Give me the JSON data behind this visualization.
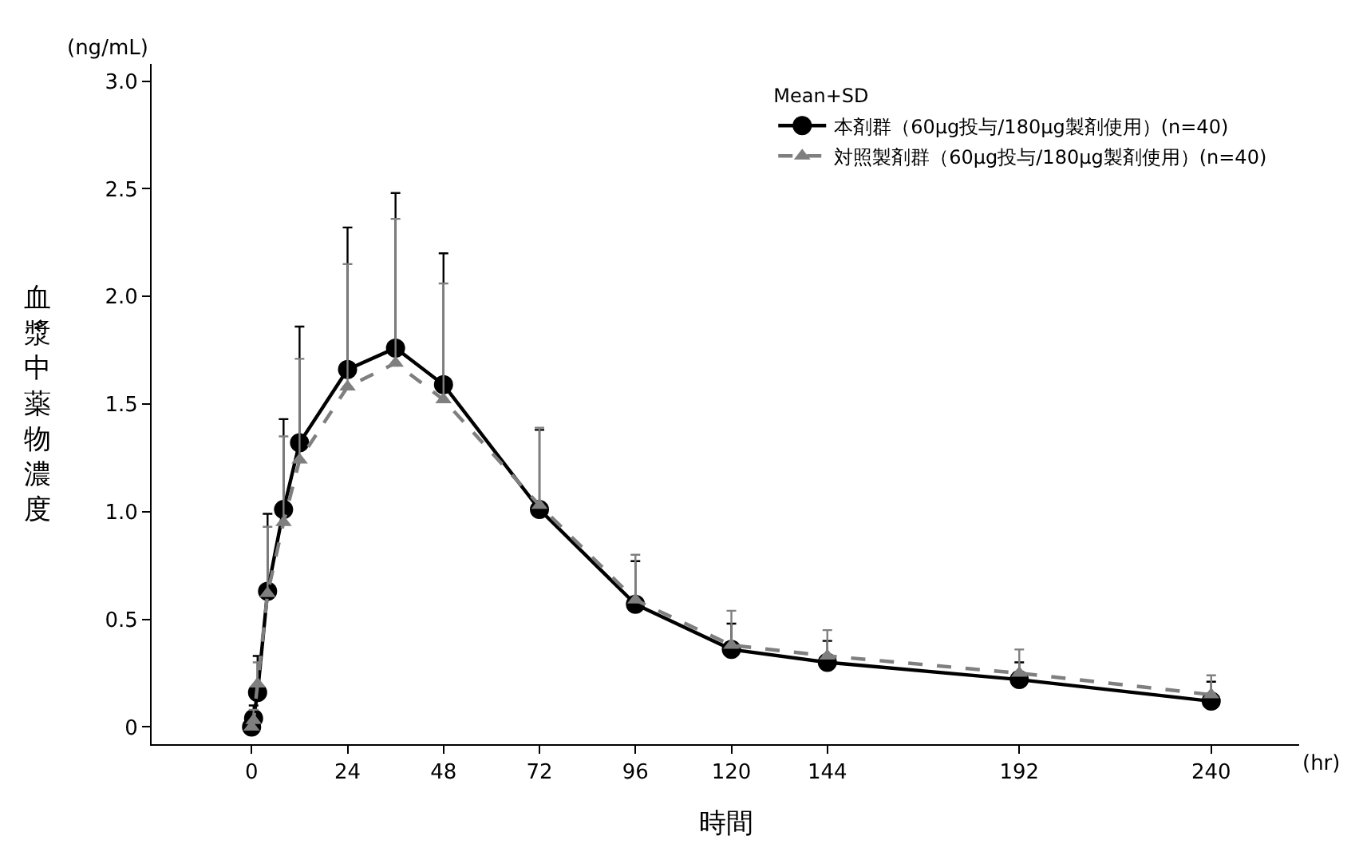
{
  "chart_data": {
    "type": "line",
    "xlabel": "時間",
    "ylabel": "血漿中薬物濃度",
    "legend_title": "Mean+SD",
    "annotations": [
      "(ng/mL)",
      "(hr)"
    ],
    "x": [
      0,
      0.5,
      1.5,
      4,
      8,
      12,
      24,
      36,
      48,
      72,
      96,
      120,
      144,
      192,
      240
    ],
    "series": [
      {
        "name": "本剤群（60µg投与/180µg製剤使用）(n=40)",
        "color": "#000000",
        "marker": "circle",
        "line_style": "solid",
        "values": [
          0,
          0.04,
          0.16,
          0.63,
          1.01,
          1.32,
          1.66,
          1.76,
          1.59,
          1.01,
          0.57,
          0.36,
          0.3,
          0.22,
          0.12
        ],
        "errors": [
          null,
          [
            0.04,
            0.1
          ],
          [
            0.16,
            0.33
          ],
          [
            0.63,
            0.99
          ],
          [
            1.01,
            1.43
          ],
          [
            1.32,
            1.86
          ],
          [
            1.66,
            2.32
          ],
          [
            1.76,
            2.48
          ],
          [
            1.59,
            2.2
          ],
          [
            1.01,
            1.38
          ],
          [
            0.57,
            0.77
          ],
          [
            0.36,
            0.48
          ],
          [
            0.3,
            0.4
          ],
          [
            0.22,
            0.3
          ],
          [
            0.12,
            0.21
          ]
        ]
      },
      {
        "name": "対照製剤群（60µg投与/180µg製剤使用）(n=40)",
        "color": "#7f7f7f",
        "marker": "triangle",
        "line_style": "dashed",
        "values": [
          0,
          0.03,
          0.2,
          0.62,
          0.95,
          1.24,
          1.58,
          1.69,
          1.52,
          1.03,
          0.59,
          0.38,
          0.33,
          0.25,
          0.15
        ],
        "errors": [
          null,
          [
            0.03,
            0.08
          ],
          [
            0.2,
            0.3
          ],
          [
            0.62,
            0.93
          ],
          [
            0.95,
            1.35
          ],
          [
            1.24,
            1.71
          ],
          [
            1.58,
            2.15
          ],
          [
            1.69,
            2.36
          ],
          [
            1.52,
            2.06
          ],
          [
            1.03,
            1.39
          ],
          [
            0.59,
            0.8
          ],
          [
            0.38,
            0.54
          ],
          [
            0.33,
            0.45
          ],
          [
            0.25,
            0.36
          ],
          [
            0.15,
            0.24
          ]
        ]
      }
    ],
    "xlim": [
      -25,
      262
    ],
    "ylim": [
      -0.08,
      3.08
    ],
    "xticks": [
      0,
      24,
      48,
      72,
      96,
      120,
      144,
      192,
      240
    ],
    "yticks": [
      {
        "value": 0,
        "label": "0"
      },
      {
        "value": 0.5,
        "label": "0.5"
      },
      {
        "value": 1,
        "label": "1.0"
      },
      {
        "value": 1.5,
        "label": "1.5"
      },
      {
        "value": 2,
        "label": "2.0"
      },
      {
        "value": 2.5,
        "label": "2.5"
      },
      {
        "value": 3,
        "label": "3.0"
      }
    ],
    "legend": "top right"
  }
}
